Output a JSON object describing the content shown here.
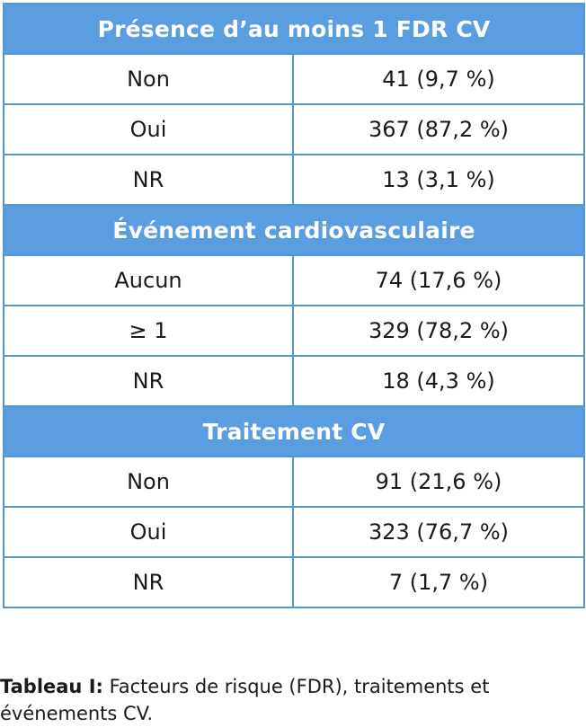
{
  "sections": [
    {
      "title": "Présence d’au moins 1 FDR CV",
      "rows": [
        {
          "label": "Non",
          "value": "41 (9,7 %)"
        },
        {
          "label": "Oui",
          "value": "367 (87,2 %)"
        },
        {
          "label": "NR",
          "value": "13 (3,1 %)"
        }
      ]
    },
    {
      "title": "Événement cardiovasculaire",
      "rows": [
        {
          "label": "Aucun",
          "value": "74 (17,6 %)"
        },
        {
          "label": "≥ 1",
          "value": "329 (78,2 %)"
        },
        {
          "label": "NR",
          "value": "18 (4,3 %)"
        }
      ]
    },
    {
      "title": "Traitement CV",
      "rows": [
        {
          "label": "Non",
          "value": "91 (21,6 %)"
        },
        {
          "label": "Oui",
          "value": "323 (76,7 %)"
        },
        {
          "label": "NR",
          "value": "7 (1,7 %)"
        }
      ]
    }
  ],
  "caption": {
    "label": "Tableau I:",
    "text": " Facteurs de risque (FDR), traitements et événements CV."
  },
  "colors": {
    "header_bg": "#5a9de0",
    "border": "#4f97d8"
  }
}
